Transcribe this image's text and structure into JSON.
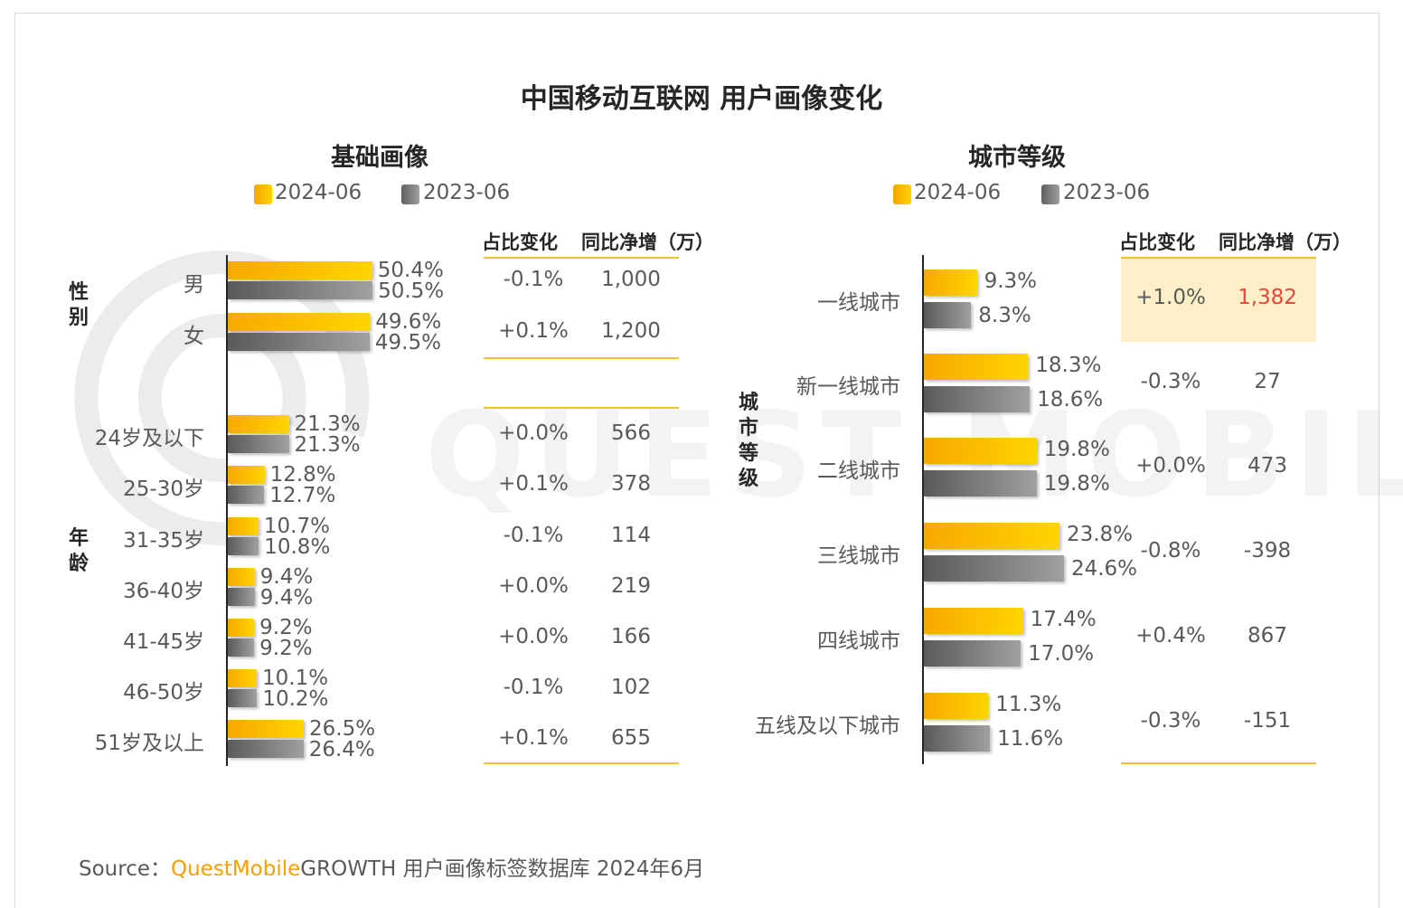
{
  "title": "中国移动互联网 用户画像变化",
  "legend": {
    "series_a": "2024-06",
    "series_b": "2023-06",
    "color_a": "#f5c000",
    "color_b": "#7f7f7f"
  },
  "columns": {
    "share_change": "占比变化",
    "net_increase": "同比净增（万）"
  },
  "watermark": "QUEST MOBILE",
  "source": {
    "prefix": "Source：",
    "brand": "QuestMobile",
    "rest": "GROWTH 用户画像标签数据库 2024年6月"
  },
  "chart_data": [
    {
      "type": "bar",
      "title": "基础画像",
      "orientation": "horizontal",
      "groups": [
        {
          "label": "性别",
          "categories": [
            "男",
            "女"
          ],
          "series": [
            {
              "name": "2024-06",
              "values": [
                50.4,
                49.6
              ],
              "labels": [
                "50.4%",
                "49.6%"
              ]
            },
            {
              "name": "2023-06",
              "values": [
                50.5,
                49.5
              ],
              "labels": [
                "50.5%",
                "49.5%"
              ]
            }
          ],
          "share_change": [
            "-0.1%",
            "+0.1%"
          ],
          "net_increase": [
            "1,000",
            "1,200"
          ]
        },
        {
          "label": "年龄",
          "categories": [
            "24岁及以下",
            "25-30岁",
            "31-35岁",
            "36-40岁",
            "41-45岁",
            "46-50岁",
            "51岁及以上"
          ],
          "series": [
            {
              "name": "2024-06",
              "values": [
                21.3,
                12.8,
                10.7,
                9.4,
                9.2,
                10.1,
                26.5
              ],
              "labels": [
                "21.3%",
                "12.8%",
                "10.7%",
                "9.4%",
                "9.2%",
                "10.1%",
                "26.5%"
              ]
            },
            {
              "name": "2023-06",
              "values": [
                21.3,
                12.7,
                10.8,
                9.4,
                9.2,
                10.2,
                26.4
              ],
              "labels": [
                "21.3%",
                "12.7%",
                "10.8%",
                "9.4%",
                "9.2%",
                "10.2%",
                "26.4%"
              ]
            }
          ],
          "share_change": [
            "+0.0%",
            "+0.1%",
            "-0.1%",
            "+0.0%",
            "+0.0%",
            "-0.1%",
            "+0.1%"
          ],
          "net_increase": [
            "566",
            "378",
            "114",
            "219",
            "166",
            "102",
            "655"
          ]
        }
      ],
      "xlim": [
        0,
        100
      ]
    },
    {
      "type": "bar",
      "title": "城市等级",
      "orientation": "horizontal",
      "groups": [
        {
          "label": "城市等级",
          "categories": [
            "一线城市",
            "新一线城市",
            "二线城市",
            "三线城市",
            "四线城市",
            "五线及以下城市"
          ],
          "series": [
            {
              "name": "2024-06",
              "values": [
                9.3,
                18.3,
                19.8,
                23.8,
                17.4,
                11.3
              ],
              "labels": [
                "9.3%",
                "18.3%",
                "19.8%",
                "23.8%",
                "17.4%",
                "11.3%"
              ]
            },
            {
              "name": "2023-06",
              "values": [
                8.3,
                18.6,
                19.8,
                24.6,
                17.0,
                11.6
              ],
              "labels": [
                "8.3%",
                "18.6%",
                "19.8%",
                "24.6%",
                "17.0%",
                "11.6%"
              ]
            }
          ],
          "share_change": [
            "+1.0%",
            "-0.3%",
            "+0.0%",
            "-0.8%",
            "+0.4%",
            "-0.3%"
          ],
          "net_increase": [
            "1,382",
            "27",
            "473",
            "-398",
            "867",
            "-151"
          ],
          "highlight_index": 0,
          "highlight_color": "#e8453c"
        }
      ],
      "xlim": [
        0,
        100
      ]
    }
  ]
}
